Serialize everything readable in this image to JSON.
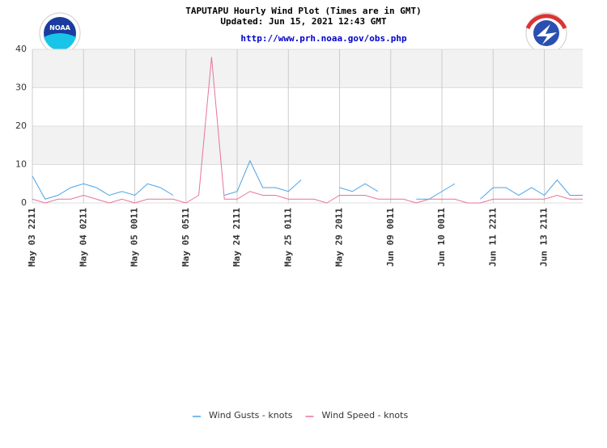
{
  "chart_data": {
    "type": "line",
    "title": "TAPUTAPU Hourly Wind Plot (Times are in GMT)",
    "subtitle": "Updated: Jun 15, 2021 12:43 GMT",
    "source_url": "http://www.prh.noaa.gov/obs.php",
    "categories": [
      "May 03 2211",
      null,
      null,
      null,
      "May 04 0211",
      null,
      null,
      null,
      "May 05 0011",
      null,
      null,
      null,
      "May 05 0511",
      null,
      null,
      null,
      "May 24 2111",
      null,
      null,
      null,
      "May 25 0111",
      null,
      null,
      null,
      "May 29 2011",
      null,
      null,
      null,
      "Jun 09 0011",
      null,
      null,
      null,
      "Jun 10 0011",
      null,
      null,
      null,
      "Jun 11 2211",
      null,
      null,
      null,
      "Jun 13 2111",
      null,
      null,
      null
    ],
    "series": [
      {
        "name": "Wind Gusts - knots",
        "color": "#4ba3e8",
        "values": [
          7,
          1,
          2,
          4,
          5,
          4,
          2,
          3,
          2,
          5,
          4,
          2,
          null,
          null,
          null,
          2,
          3,
          11,
          4,
          4,
          3,
          6,
          null,
          null,
          4,
          3,
          5,
          3,
          null,
          null,
          1,
          1,
          3,
          5,
          null,
          1,
          4,
          4,
          2,
          4,
          2,
          6,
          2,
          2
        ]
      },
      {
        "name": "Wind Speed - knots",
        "color": "#e8739e",
        "values": [
          1,
          0,
          1,
          1,
          2,
          1,
          0,
          1,
          0,
          1,
          1,
          1,
          0,
          2,
          38,
          1,
          1,
          3,
          2,
          2,
          1,
          1,
          1,
          0,
          2,
          2,
          2,
          1,
          1,
          1,
          0,
          1,
          1,
          1,
          0,
          0,
          1,
          1,
          1,
          1,
          1,
          2,
          1,
          1
        ]
      }
    ],
    "ylim": [
      0,
      40
    ],
    "yticks": [
      0,
      10,
      20,
      30,
      40
    ],
    "grid": true
  }
}
